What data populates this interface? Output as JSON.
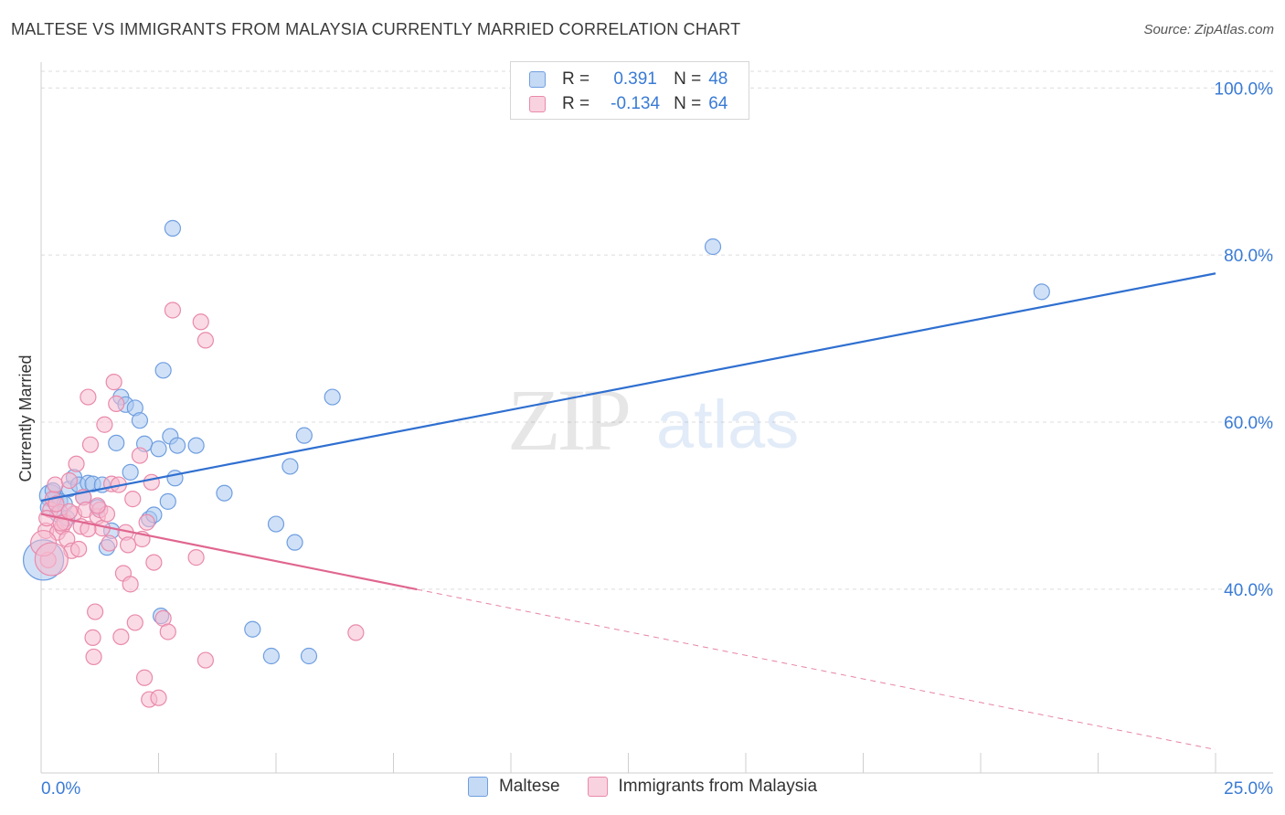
{
  "title": "MALTESE VS IMMIGRANTS FROM MALAYSIA CURRENTLY MARRIED CORRELATION CHART",
  "source": "Source: ZipAtlas.com",
  "watermark": {
    "zip": "ZIP",
    "atlas": "atlas"
  },
  "legend": {
    "rows": [
      {
        "r_label": "R =",
        "r_value": "0.391",
        "n_label": "N =",
        "n_value": "48",
        "color": "#a9c8f0",
        "border": "#6f9ee0"
      },
      {
        "r_label": "R =",
        "r_value": "-0.134",
        "n_label": "N =",
        "n_value": "64",
        "color": "#f6bcd0",
        "border": "#e98aab"
      }
    ]
  },
  "chart_data": {
    "type": "scatter",
    "title": "MALTESE VS IMMIGRANTS FROM MALAYSIA CURRENTLY MARRIED CORRELATION CHART",
    "xlabel": "",
    "ylabel": "Currently Married",
    "xlim": [
      0,
      25
    ],
    "ylim": [
      18,
      102
    ],
    "x_tick_labels": [
      "0.0%",
      "25.0%"
    ],
    "y_ticks": [
      40,
      60,
      80,
      100
    ],
    "y_tick_labels": [
      "40.0%",
      "60.0%",
      "80.0%",
      "100.0%"
    ],
    "series": [
      {
        "name": "Maltese",
        "color": "#a9c8f0",
        "stroke": "#6f9ee0",
        "line_color": "#2f6fd0",
        "trend": {
          "x0": 0,
          "y0": 50.6,
          "x1": 25,
          "y1": 77.8,
          "dashed_from": null
        },
        "points": [
          [
            0.2,
            51.2
          ],
          [
            0.3,
            50.8
          ],
          [
            0.4,
            50.5
          ],
          [
            0.5,
            50.2
          ],
          [
            0.6,
            52.0
          ],
          [
            0.7,
            53.4
          ],
          [
            0.8,
            52.5
          ],
          [
            0.9,
            51.0
          ],
          [
            1.0,
            52.7
          ],
          [
            1.1,
            52.6
          ],
          [
            1.2,
            49.8
          ],
          [
            1.3,
            52.5
          ],
          [
            1.4,
            45.0
          ],
          [
            1.6,
            57.5
          ],
          [
            1.7,
            63.0
          ],
          [
            1.8,
            62.1
          ],
          [
            1.9,
            54.0
          ],
          [
            2.0,
            61.7
          ],
          [
            2.1,
            60.2
          ],
          [
            2.2,
            57.4
          ],
          [
            2.3,
            48.4
          ],
          [
            2.4,
            48.9
          ],
          [
            2.5,
            56.8
          ],
          [
            2.55,
            36.8
          ],
          [
            2.6,
            66.2
          ],
          [
            2.7,
            50.5
          ],
          [
            2.75,
            58.3
          ],
          [
            2.8,
            83.2
          ],
          [
            2.85,
            53.3
          ],
          [
            2.9,
            57.2
          ],
          [
            3.3,
            57.2
          ],
          [
            3.9,
            51.5
          ],
          [
            4.5,
            35.2
          ],
          [
            4.9,
            32.0
          ],
          [
            5.0,
            47.8
          ],
          [
            5.3,
            54.7
          ],
          [
            5.4,
            45.6
          ],
          [
            5.6,
            58.4
          ],
          [
            5.7,
            32.0
          ],
          [
            6.2,
            63.0
          ],
          [
            14.3,
            81.0
          ],
          [
            21.3,
            75.6
          ],
          [
            0.05,
            43.5
          ],
          [
            0.15,
            49.8
          ],
          [
            0.35,
            49.0
          ],
          [
            0.55,
            48.5
          ],
          [
            1.5,
            47.0
          ],
          [
            0.25,
            51.8
          ]
        ],
        "sizes": {
          "0": 12,
          "42": 22
        }
      },
      {
        "name": "Immigrants from Malaysia",
        "color": "#f6bcd0",
        "stroke": "#e98aab",
        "line_color": "#e0668f",
        "trend": {
          "x0": 0,
          "y0": 49.0,
          "x1": 25,
          "y1": 20.8,
          "dashed_from": 8.0
        },
        "points": [
          [
            0.1,
            47.0
          ],
          [
            0.15,
            43.5
          ],
          [
            0.2,
            49.5
          ],
          [
            0.25,
            50.8
          ],
          [
            0.3,
            52.5
          ],
          [
            0.35,
            46.8
          ],
          [
            0.4,
            49.2
          ],
          [
            0.45,
            47.5
          ],
          [
            0.5,
            48.0
          ],
          [
            0.55,
            46.0
          ],
          [
            0.6,
            53.0
          ],
          [
            0.65,
            44.6
          ],
          [
            0.7,
            49.0
          ],
          [
            0.75,
            55.0
          ],
          [
            0.8,
            44.8
          ],
          [
            0.85,
            47.5
          ],
          [
            0.9,
            51.0
          ],
          [
            0.95,
            49.5
          ],
          [
            1.0,
            63.0
          ],
          [
            1.05,
            57.3
          ],
          [
            1.1,
            34.2
          ],
          [
            1.12,
            31.9
          ],
          [
            1.15,
            37.3
          ],
          [
            1.2,
            48.7
          ],
          [
            1.25,
            49.5
          ],
          [
            1.3,
            47.3
          ],
          [
            1.35,
            59.7
          ],
          [
            1.4,
            49.0
          ],
          [
            1.45,
            45.5
          ],
          [
            1.5,
            52.6
          ],
          [
            1.55,
            64.8
          ],
          [
            1.6,
            62.2
          ],
          [
            1.65,
            52.5
          ],
          [
            1.7,
            34.3
          ],
          [
            1.75,
            41.9
          ],
          [
            1.8,
            46.8
          ],
          [
            1.85,
            45.3
          ],
          [
            1.9,
            40.6
          ],
          [
            1.95,
            50.8
          ],
          [
            2.0,
            36.0
          ],
          [
            2.1,
            56.0
          ],
          [
            2.15,
            46.0
          ],
          [
            2.2,
            29.4
          ],
          [
            2.25,
            48.0
          ],
          [
            2.3,
            26.8
          ],
          [
            2.35,
            52.8
          ],
          [
            2.4,
            43.2
          ],
          [
            2.5,
            27.0
          ],
          [
            2.6,
            36.5
          ],
          [
            2.7,
            34.9
          ],
          [
            2.8,
            73.4
          ],
          [
            3.3,
            43.8
          ],
          [
            3.5,
            31.5
          ],
          [
            3.4,
            72.0
          ],
          [
            3.5,
            69.8
          ],
          [
            6.7,
            34.8
          ],
          [
            0.05,
            45.5
          ],
          [
            0.12,
            48.5
          ],
          [
            0.22,
            43.6
          ],
          [
            0.32,
            50.2
          ],
          [
            0.42,
            47.9
          ],
          [
            0.6,
            49.3
          ],
          [
            1.0,
            47.2
          ],
          [
            1.2,
            50.0
          ]
        ],
        "sizes": {
          "56": 14,
          "58": 18
        }
      }
    ],
    "legend_entries": [
      "Maltese",
      "Immigrants from Malaysia"
    ]
  }
}
